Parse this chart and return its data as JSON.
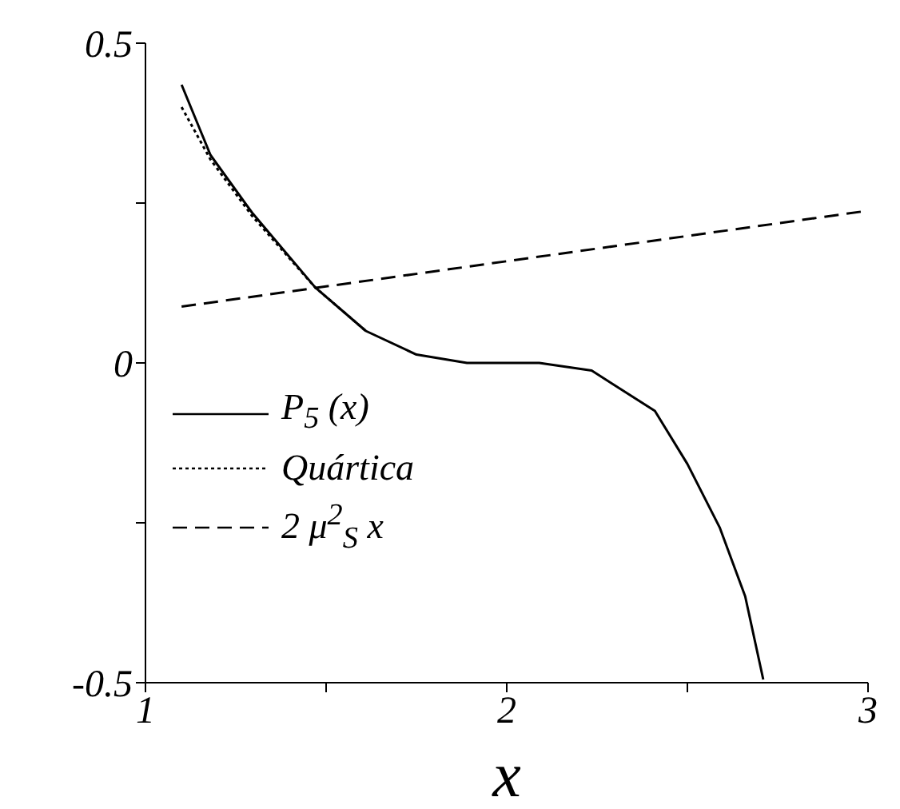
{
  "chart_data": {
    "type": "line",
    "xlabel": "x",
    "xlim": [
      1,
      3
    ],
    "ylim": [
      -0.5,
      0.5
    ],
    "xticks": [
      1,
      {
        "value": 1.5,
        "label": null
      },
      2,
      {
        "value": 2.5,
        "label": null
      },
      3
    ],
    "yticks": [
      -0.5,
      {
        "value": -0.25,
        "label": null
      },
      0,
      {
        "value": 0.25,
        "label": null
      },
      0.5
    ],
    "grid": false,
    "legend": "center",
    "marker": "none",
    "series": [
      {
        "name": "P$_{5}$ (x)",
        "color": "#000000",
        "line_style": "solid",
        "x": [
          1.1,
          1.18,
          1.295,
          1.47,
          1.61,
          1.75,
          1.89,
          2.09,
          2.235,
          2.41,
          2.5,
          2.59,
          2.66,
          2.71
        ],
        "values": [
          0.435,
          0.325,
          0.235,
          0.118,
          0.05,
          0.013,
          0,
          0,
          -0.012,
          -0.075,
          -0.158,
          -0.258,
          -0.365,
          -0.495
        ]
      },
      {
        "name": "Quártica",
        "color": "#000000",
        "line_style": "dotted",
        "x": [
          1.1,
          1.18,
          1.295,
          1.47,
          1.61
        ],
        "values": [
          0.4,
          0.318,
          0.23,
          0.118,
          0.05
        ]
      },
      {
        "name": "2 μ$^{2}$$_{S}$ x",
        "color": "#000000",
        "line_style": "dashed",
        "x": [
          1.1,
          3
        ],
        "values": [
          0.088,
          0.238
        ]
      }
    ]
  }
}
